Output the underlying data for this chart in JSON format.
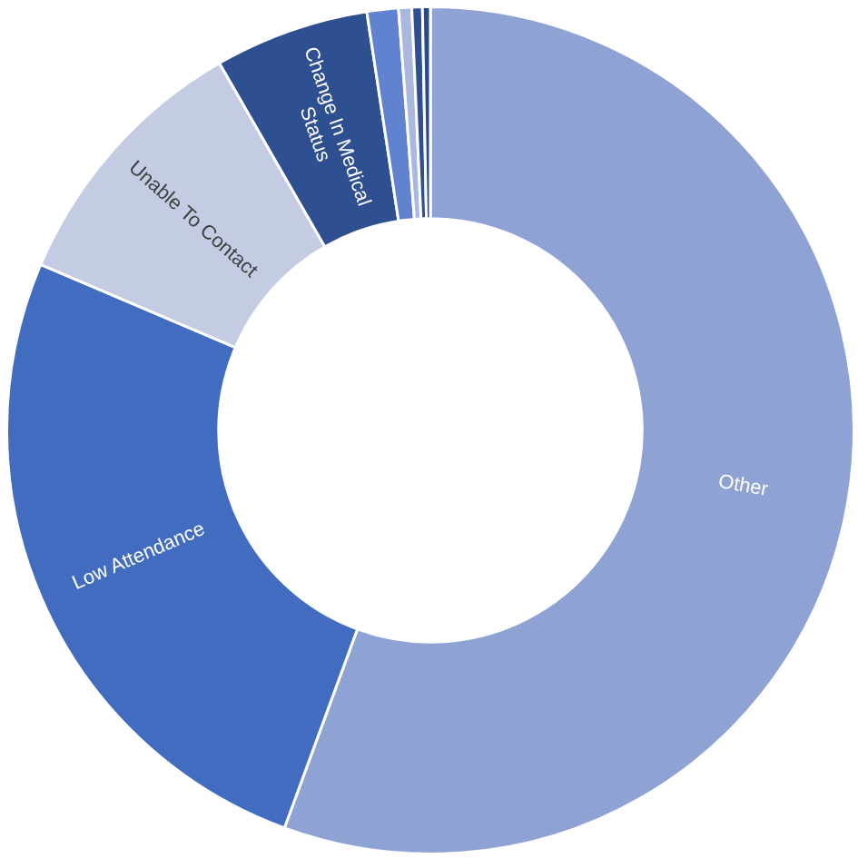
{
  "chart_data": {
    "type": "donut",
    "categories": [
      "Other",
      "Low Attendance",
      "Unable To Contact",
      "Change In Medical Status",
      null,
      null,
      null,
      null
    ],
    "values": [
      55.6,
      25.8,
      10.3,
      5.9,
      1.2,
      0.5,
      0.4,
      0.3
    ],
    "colors": [
      "#8fa2d4",
      "#416cbf",
      "#c4cce3",
      "#2f5090",
      "#6182cf",
      "#aab8e0",
      "#2f5090",
      "#2a4a8a"
    ]
  }
}
